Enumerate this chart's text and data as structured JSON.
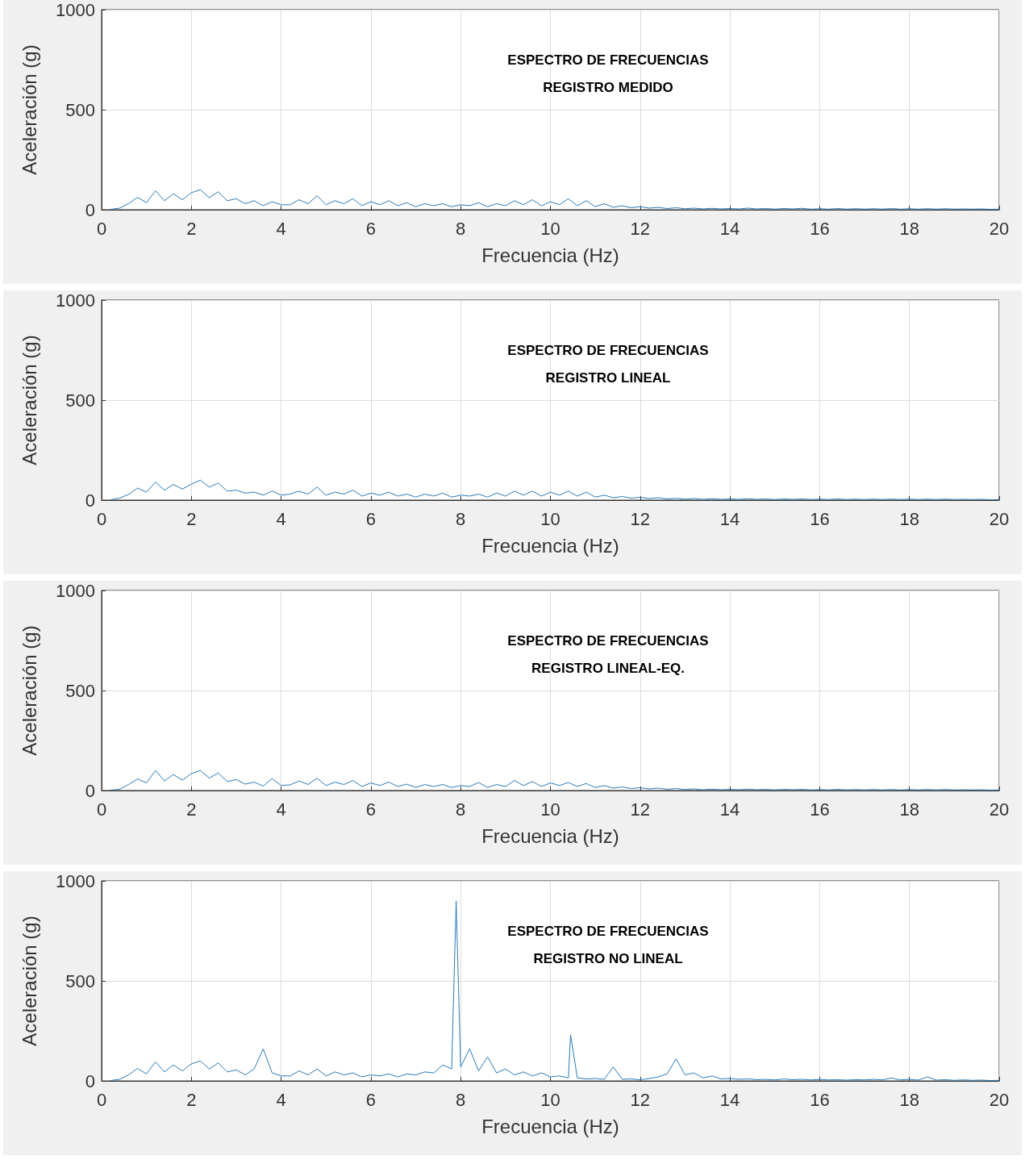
{
  "chart_data": [
    {
      "type": "line",
      "title": "ESPECTRO DE FRECUENCIAS\nREGISTRO MEDIDO",
      "xlabel": "Frecuencia (Hz)",
      "ylabel": "Aceleración (g)",
      "xlim": [
        0,
        20
      ],
      "xticks": [
        0,
        2,
        4,
        6,
        8,
        10,
        12,
        14,
        16,
        18,
        20
      ],
      "ylim": [
        0,
        1000
      ],
      "yticks": [
        0,
        500,
        1000
      ],
      "grid": true,
      "marker": "none",
      "line_style": "solid",
      "x": [
        0.2,
        0.4,
        0.6,
        0.8,
        1.0,
        1.2,
        1.4,
        1.6,
        1.8,
        2.0,
        2.2,
        2.4,
        2.6,
        2.8,
        3.0,
        3.2,
        3.4,
        3.6,
        3.8,
        4.0,
        4.2,
        4.4,
        4.6,
        4.8,
        5.0,
        5.2,
        5.4,
        5.6,
        5.8,
        6.0,
        6.2,
        6.4,
        6.6,
        6.8,
        7.0,
        7.2,
        7.4,
        7.6,
        7.8,
        8.0,
        8.2,
        8.4,
        8.6,
        8.8,
        9.0,
        9.2,
        9.4,
        9.6,
        9.8,
        10.0,
        10.2,
        10.4,
        10.6,
        10.8,
        11.0,
        11.2,
        11.4,
        11.6,
        11.8,
        12.0,
        12.2,
        12.4,
        12.6,
        12.8,
        13.0,
        13.2,
        13.4,
        13.6,
        13.8,
        14.0,
        14.2,
        14.4,
        14.6,
        14.8,
        15.0,
        15.2,
        15.4,
        15.6,
        15.8,
        16.0,
        16.2,
        16.4,
        16.6,
        16.8,
        17.0,
        17.2,
        17.4,
        17.6,
        17.8,
        18.0,
        18.2,
        18.4,
        18.6,
        18.8,
        19.0,
        19.2,
        19.4,
        19.6,
        19.8,
        20.0
      ],
      "series": [
        {
          "color": "#2a7ab9",
          "values": [
            2,
            8,
            30,
            62,
            35,
            95,
            45,
            80,
            50,
            85,
            100,
            60,
            90,
            45,
            55,
            30,
            45,
            20,
            40,
            25,
            25,
            50,
            30,
            70,
            25,
            45,
            30,
            55,
            20,
            40,
            25,
            45,
            20,
            35,
            15,
            30,
            20,
            30,
            15,
            25,
            20,
            35,
            15,
            30,
            20,
            45,
            25,
            50,
            20,
            40,
            25,
            55,
            20,
            45,
            15,
            30,
            12,
            20,
            10,
            15,
            8,
            12,
            6,
            10,
            5,
            8,
            4,
            7,
            4,
            6,
            4,
            8,
            4,
            6,
            3,
            6,
            4,
            7,
            3,
            5,
            3,
            6,
            3,
            5,
            3,
            5,
            3,
            6,
            3,
            5,
            3,
            5,
            3,
            5,
            3,
            4,
            3,
            4,
            2,
            3
          ]
        }
      ]
    },
    {
      "type": "line",
      "title": "ESPECTRO DE FRECUENCIAS\nREGISTRO LINEAL",
      "xlabel": "Frecuencia (Hz)",
      "ylabel": "Aceleración (g)",
      "xlim": [
        0,
        20
      ],
      "xticks": [
        0,
        2,
        4,
        6,
        8,
        10,
        12,
        14,
        16,
        18,
        20
      ],
      "ylim": [
        0,
        1000
      ],
      "yticks": [
        0,
        500,
        1000
      ],
      "grid": true,
      "marker": "none",
      "line_style": "solid",
      "x": [
        0.2,
        0.4,
        0.6,
        0.8,
        1.0,
        1.2,
        1.4,
        1.6,
        1.8,
        2.0,
        2.2,
        2.4,
        2.6,
        2.8,
        3.0,
        3.2,
        3.4,
        3.6,
        3.8,
        4.0,
        4.2,
        4.4,
        4.6,
        4.8,
        5.0,
        5.2,
        5.4,
        5.6,
        5.8,
        6.0,
        6.2,
        6.4,
        6.6,
        6.8,
        7.0,
        7.2,
        7.4,
        7.6,
        7.8,
        8.0,
        8.2,
        8.4,
        8.6,
        8.8,
        9.0,
        9.2,
        9.4,
        9.6,
        9.8,
        10.0,
        10.2,
        10.4,
        10.6,
        10.8,
        11.0,
        11.2,
        11.4,
        11.6,
        11.8,
        12.0,
        12.2,
        12.4,
        12.6,
        12.8,
        13.0,
        13.2,
        13.4,
        13.6,
        13.8,
        14.0,
        14.2,
        14.4,
        14.6,
        14.8,
        15.0,
        15.2,
        15.4,
        15.6,
        15.8,
        16.0,
        16.2,
        16.4,
        16.6,
        16.8,
        17.0,
        17.2,
        17.4,
        17.6,
        17.8,
        18.0,
        18.2,
        18.4,
        18.6,
        18.8,
        19.0,
        19.2,
        19.4,
        19.6,
        19.8,
        20.0
      ],
      "series": [
        {
          "color": "#2a7ab9",
          "values": [
            2,
            10,
            28,
            60,
            40,
            90,
            50,
            78,
            55,
            80,
            100,
            65,
            85,
            45,
            50,
            35,
            40,
            25,
            45,
            25,
            30,
            45,
            30,
            65,
            25,
            40,
            30,
            50,
            20,
            35,
            25,
            40,
            20,
            30,
            15,
            30,
            20,
            35,
            15,
            25,
            20,
            30,
            15,
            35,
            20,
            45,
            25,
            45,
            20,
            40,
            25,
            45,
            20,
            40,
            15,
            25,
            12,
            18,
            10,
            14,
            8,
            12,
            6,
            9,
            5,
            8,
            4,
            7,
            4,
            6,
            4,
            7,
            4,
            6,
            3,
            6,
            4,
            6,
            3,
            5,
            3,
            6,
            3,
            5,
            3,
            5,
            3,
            5,
            3,
            5,
            3,
            5,
            3,
            5,
            3,
            4,
            3,
            4,
            2,
            3
          ]
        }
      ]
    },
    {
      "type": "line",
      "title": "ESPECTRO DE FRECUENCIAS\nREGISTRO LINEAL-EQ.",
      "xlabel": "Frecuencia (Hz)",
      "ylabel": "Aceleración (g)",
      "xlim": [
        0,
        20
      ],
      "xticks": [
        0,
        2,
        4,
        6,
        8,
        10,
        12,
        14,
        16,
        18,
        20
      ],
      "ylim": [
        0,
        1000
      ],
      "yticks": [
        0,
        500,
        1000
      ],
      "grid": true,
      "marker": "none",
      "line_style": "solid",
      "x": [
        0.2,
        0.4,
        0.6,
        0.8,
        1.0,
        1.2,
        1.4,
        1.6,
        1.8,
        2.0,
        2.2,
        2.4,
        2.6,
        2.8,
        3.0,
        3.2,
        3.4,
        3.6,
        3.8,
        4.0,
        4.2,
        4.4,
        4.6,
        4.8,
        5.0,
        5.2,
        5.4,
        5.6,
        5.8,
        6.0,
        6.2,
        6.4,
        6.6,
        6.8,
        7.0,
        7.2,
        7.4,
        7.6,
        7.8,
        8.0,
        8.2,
        8.4,
        8.6,
        8.8,
        9.0,
        9.2,
        9.4,
        9.6,
        9.8,
        10.0,
        10.2,
        10.4,
        10.6,
        10.8,
        11.0,
        11.2,
        11.4,
        11.6,
        11.8,
        12.0,
        12.2,
        12.4,
        12.6,
        12.8,
        13.0,
        13.2,
        13.4,
        13.6,
        13.8,
        14.0,
        14.2,
        14.4,
        14.6,
        14.8,
        15.0,
        15.2,
        15.4,
        15.6,
        15.8,
        16.0,
        16.2,
        16.4,
        16.6,
        16.8,
        17.0,
        17.2,
        17.4,
        17.6,
        17.8,
        18.0,
        18.2,
        18.4,
        18.6,
        18.8,
        19.0,
        19.2,
        19.4,
        19.6,
        19.8,
        20.0
      ],
      "series": [
        {
          "color": "#2a7ab9",
          "values": [
            2,
            6,
            30,
            58,
            38,
            100,
            48,
            80,
            52,
            85,
            100,
            62,
            88,
            45,
            55,
            32,
            42,
            22,
            60,
            25,
            28,
            48,
            30,
            62,
            25,
            42,
            30,
            50,
            20,
            38,
            25,
            42,
            20,
            32,
            15,
            30,
            20,
            30,
            15,
            25,
            20,
            40,
            15,
            30,
            20,
            50,
            25,
            45,
            20,
            38,
            25,
            40,
            20,
            35,
            15,
            25,
            12,
            18,
            10,
            14,
            8,
            12,
            6,
            10,
            5,
            8,
            4,
            7,
            4,
            6,
            4,
            7,
            4,
            6,
            3,
            6,
            4,
            6,
            3,
            5,
            3,
            6,
            3,
            5,
            3,
            5,
            3,
            5,
            3,
            5,
            3,
            5,
            3,
            5,
            3,
            4,
            3,
            4,
            2,
            3
          ]
        }
      ]
    },
    {
      "type": "line",
      "title": "ESPECTRO DE FRECUENCIAS\nREGISTRO NO LINEAL",
      "xlabel": "Frecuencia (Hz)",
      "ylabel": "Aceleración (g)",
      "xlim": [
        0,
        20
      ],
      "xticks": [
        0,
        2,
        4,
        6,
        8,
        10,
        12,
        14,
        16,
        18,
        20
      ],
      "ylim": [
        0,
        1000
      ],
      "yticks": [
        0,
        500,
        1000
      ],
      "grid": true,
      "marker": "none",
      "line_style": "solid",
      "x": [
        0.2,
        0.4,
        0.6,
        0.8,
        1.0,
        1.2,
        1.4,
        1.6,
        1.8,
        2.0,
        2.2,
        2.4,
        2.6,
        2.8,
        3.0,
        3.2,
        3.4,
        3.6,
        3.8,
        4.0,
        4.2,
        4.4,
        4.6,
        4.8,
        5.0,
        5.2,
        5.4,
        5.6,
        5.8,
        6.0,
        6.2,
        6.4,
        6.6,
        6.8,
        7.0,
        7.2,
        7.4,
        7.6,
        7.8,
        7.9,
        8.0,
        8.2,
        8.4,
        8.6,
        8.8,
        9.0,
        9.2,
        9.4,
        9.6,
        9.8,
        10.0,
        10.2,
        10.4,
        10.45,
        10.6,
        10.8,
        11.0,
        11.2,
        11.4,
        11.6,
        11.8,
        12.0,
        12.2,
        12.4,
        12.6,
        12.8,
        13.0,
        13.2,
        13.4,
        13.6,
        13.8,
        14.0,
        14.2,
        14.4,
        14.6,
        14.8,
        15.0,
        15.2,
        15.4,
        15.6,
        15.8,
        16.0,
        16.2,
        16.4,
        16.6,
        16.8,
        17.0,
        17.2,
        17.4,
        17.6,
        17.8,
        18.0,
        18.2,
        18.4,
        18.6,
        18.8,
        19.0,
        19.2,
        19.4,
        19.6,
        19.8,
        20.0
      ],
      "series": [
        {
          "color": "#2a7ab9",
          "values": [
            2,
            8,
            30,
            62,
            35,
            95,
            45,
            80,
            50,
            85,
            100,
            60,
            90,
            45,
            55,
            30,
            60,
            160,
            40,
            25,
            25,
            50,
            30,
            60,
            25,
            45,
            30,
            40,
            20,
            30,
            25,
            35,
            20,
            35,
            30,
            45,
            40,
            80,
            60,
            900,
            70,
            160,
            50,
            120,
            40,
            60,
            30,
            45,
            25,
            40,
            20,
            25,
            15,
            230,
            15,
            10,
            12,
            8,
            70,
            8,
            10,
            6,
            12,
            20,
            35,
            110,
            30,
            40,
            15,
            25,
            10,
            12,
            8,
            10,
            6,
            8,
            5,
            10,
            6,
            8,
            5,
            7,
            5,
            6,
            4,
            6,
            5,
            8,
            5,
            15,
            5,
            8,
            4,
            20,
            4,
            6,
            3,
            5,
            3,
            4,
            2,
            3
          ]
        }
      ]
    }
  ]
}
